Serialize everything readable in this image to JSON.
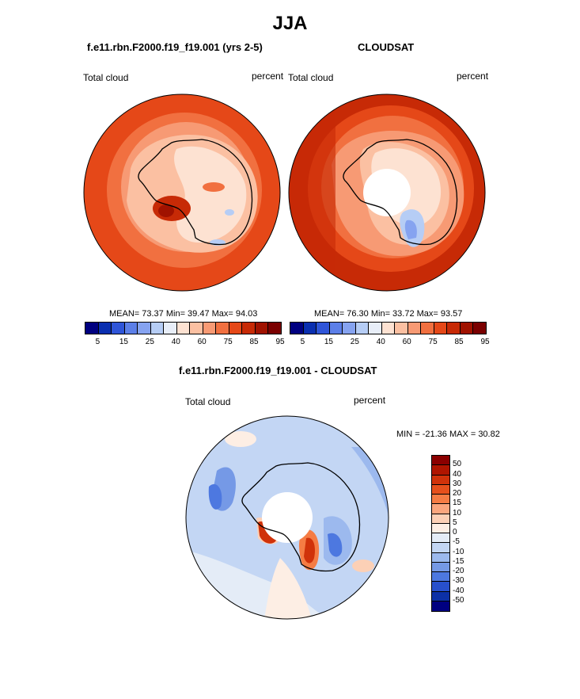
{
  "title": "JJA",
  "colors": {
    "seq": [
      "#000080",
      "#0a2fb0",
      "#2f55d8",
      "#5c7fe8",
      "#86a3f0",
      "#b6cdf5",
      "#e8eef8",
      "#fde2d2",
      "#fbc0a2",
      "#f79a74",
      "#f17040",
      "#e54818",
      "#c72a06",
      "#a01200",
      "#7a0000"
    ],
    "diff": [
      "#8b0000",
      "#b01500",
      "#d0320a",
      "#e6501c",
      "#f57c44",
      "#faa67e",
      "#fcd0b6",
      "#fdeee4",
      "#e4ecf7",
      "#c3d6f4",
      "#9cb9ee",
      "#7599e6",
      "#4d78e0",
      "#2850cc",
      "#0c30a6",
      "#000080"
    ]
  },
  "panel_left": {
    "title": "f.e11.rbn.F2000.f19_f19.001 (yrs 2-5)",
    "var_label": "Total cloud",
    "units": "percent",
    "stats": "MEAN=  73.37  Min=  39.47  Max=  94.03"
  },
  "panel_right": {
    "title": "CLOUDSAT",
    "var_label": "Total cloud",
    "units": "percent",
    "stats": "MEAN=  76.30  Min=  33.72  Max=  93.57"
  },
  "panel_diff": {
    "title": "f.e11.rbn.F2000.f19_f19.001 - CLOUDSAT",
    "var_label": "Total cloud",
    "units": "percent",
    "stats": "MIN = -21.36 MAX =  30.82"
  },
  "chart_data": [
    {
      "type": "heatmap",
      "projection": "south polar stereographic",
      "title": "f.e11.rbn.F2000.f19_f19.001 (yrs 2-5)",
      "variable": "Total cloud",
      "units": "percent",
      "mean": 73.37,
      "min": 39.47,
      "max": 94.03,
      "colorbar_levels": [
        5,
        10,
        15,
        20,
        25,
        30,
        40,
        50,
        60,
        70,
        75,
        80,
        85,
        90
      ],
      "colorbar_tick_labels": [
        "5",
        "15",
        "25",
        "40",
        "60",
        "75",
        "85",
        "95"
      ]
    },
    {
      "type": "heatmap",
      "projection": "south polar stereographic",
      "title": "CLOUDSAT",
      "variable": "Total cloud",
      "units": "percent",
      "mean": 76.3,
      "min": 33.72,
      "max": 93.57,
      "colorbar_levels": [
        5,
        10,
        15,
        20,
        25,
        30,
        40,
        50,
        60,
        70,
        75,
        80,
        85,
        90
      ],
      "colorbar_tick_labels": [
        "5",
        "15",
        "25",
        "40",
        "60",
        "75",
        "85",
        "95"
      ]
    },
    {
      "type": "heatmap",
      "projection": "south polar stereographic",
      "title": "f.e11.rbn.F2000.f19_f19.001 - CLOUDSAT",
      "variable": "Total cloud",
      "units": "percent",
      "min": -21.36,
      "max": 30.82,
      "colorbar_tick_labels": [
        "50",
        "40",
        "30",
        "20",
        "15",
        "10",
        "5",
        "0",
        "-5",
        "-10",
        "-15",
        "-20",
        "-30",
        "-40",
        "-50"
      ]
    }
  ]
}
